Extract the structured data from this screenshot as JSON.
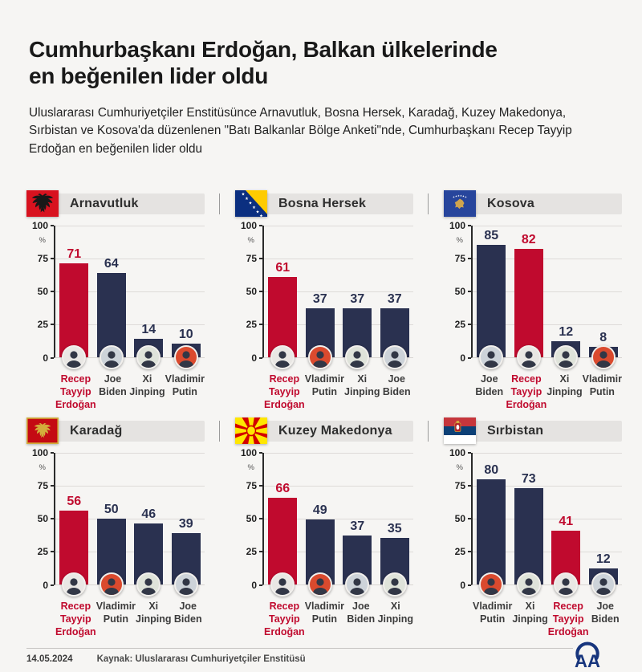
{
  "page": {
    "title_lines": [
      "Cumhurbaşkanı Erdoğan, Balkan ülkelerinde",
      "en beğenilen lider oldu"
    ],
    "subtitle": "Uluslararası Cumhuriyetçiler Enstitüsünce Arnavutluk, Bosna Hersek, Karadağ, Kuzey Makedonya, Sırbistan ve Kosova'da düzenlenen \"Batı Balkanlar Bölge Anketi\"nde, Cumhurbaşkanı Recep Tayyip Erdoğan en beğenilen lider oldu"
  },
  "colors": {
    "background": "#f6f5f3",
    "bar_default": "#2a3150",
    "bar_highlight": "#c00a2e",
    "panel_header_bg": "#e5e3e1",
    "grid_line": "#dedbd8",
    "axis_line": "#2b2b2b",
    "aa_blue": "#17357d"
  },
  "avatars": {
    "erdogan": {
      "label": "Recep Tayyip Erdoğan portrait",
      "bg": "#e9e7e4"
    },
    "biden": {
      "label": "Joe Biden portrait",
      "bg": "#cdd3d9"
    },
    "xi": {
      "label": "Xi Jinping portrait",
      "bg": "#dfe3da"
    },
    "putin": {
      "label": "Vladimir Putin portrait",
      "bg": "#da4a2e"
    }
  },
  "chart_data": {
    "type": "bar",
    "unit": "%",
    "ylim": [
      0,
      100
    ],
    "yticks": [
      100,
      75,
      50,
      25,
      0
    ],
    "grid": true,
    "charts": [
      {
        "country": "Arnavutluk",
        "flag": "albania",
        "bars": [
          {
            "name": "Recep Tayyip Erdoğan",
            "value": 71,
            "highlight": true,
            "avatar": "erdogan"
          },
          {
            "name": "Joe Biden",
            "value": 64,
            "highlight": false,
            "avatar": "biden"
          },
          {
            "name": "Xi Jinping",
            "value": 14,
            "highlight": false,
            "avatar": "xi"
          },
          {
            "name": "Vladimir Putin",
            "value": 10,
            "highlight": false,
            "avatar": "putin"
          }
        ]
      },
      {
        "country": "Bosna Hersek",
        "flag": "bosnia",
        "bars": [
          {
            "name": "Recep Tayyip Erdoğan",
            "value": 61,
            "highlight": true,
            "avatar": "erdogan"
          },
          {
            "name": "Vladimir Putin",
            "value": 37,
            "highlight": false,
            "avatar": "putin"
          },
          {
            "name": "Xi Jinping",
            "value": 37,
            "highlight": false,
            "avatar": "xi"
          },
          {
            "name": "Joe Biden",
            "value": 37,
            "highlight": false,
            "avatar": "biden"
          }
        ]
      },
      {
        "country": "Kosova",
        "flag": "kosovo",
        "bars": [
          {
            "name": "Joe Biden",
            "value": 85,
            "highlight": false,
            "avatar": "biden"
          },
          {
            "name": "Recep Tayyip Erdoğan",
            "value": 82,
            "highlight": true,
            "avatar": "erdogan"
          },
          {
            "name": "Xi Jinping",
            "value": 12,
            "highlight": false,
            "avatar": "xi"
          },
          {
            "name": "Vladimir Putin",
            "value": 8,
            "highlight": false,
            "avatar": "putin"
          }
        ]
      },
      {
        "country": "Karadağ",
        "flag": "montenegro",
        "bars": [
          {
            "name": "Recep Tayyip Erdoğan",
            "value": 56,
            "highlight": true,
            "avatar": "erdogan"
          },
          {
            "name": "Vladimir Putin",
            "value": 50,
            "highlight": false,
            "avatar": "putin"
          },
          {
            "name": "Xi Jinping",
            "value": 46,
            "highlight": false,
            "avatar": "xi"
          },
          {
            "name": "Joe Biden",
            "value": 39,
            "highlight": false,
            "avatar": "biden"
          }
        ]
      },
      {
        "country": "Kuzey Makedonya",
        "flag": "macedonia",
        "bars": [
          {
            "name": "Recep Tayyip Erdoğan",
            "value": 66,
            "highlight": true,
            "avatar": "erdogan"
          },
          {
            "name": "Vladimir Putin",
            "value": 49,
            "highlight": false,
            "avatar": "putin"
          },
          {
            "name": "Joe Biden",
            "value": 37,
            "highlight": false,
            "avatar": "biden"
          },
          {
            "name": "Xi Jinping",
            "value": 35,
            "highlight": false,
            "avatar": "xi"
          }
        ]
      },
      {
        "country": "Sırbistan",
        "flag": "serbia",
        "bars": [
          {
            "name": "Vladimir Putin",
            "value": 80,
            "highlight": false,
            "avatar": "putin"
          },
          {
            "name": "Xi Jinping",
            "value": 73,
            "highlight": false,
            "avatar": "xi"
          },
          {
            "name": "Recep Tayyip Erdoğan",
            "value": 41,
            "highlight": true,
            "avatar": "erdogan"
          },
          {
            "name": "Joe Biden",
            "value": 12,
            "highlight": false,
            "avatar": "biden"
          }
        ]
      }
    ]
  },
  "footer": {
    "date": "14.05.2024",
    "source": "Kaynak: Uluslararası Cumhuriyetçiler Enstitüsü",
    "logo_text": "AA"
  }
}
